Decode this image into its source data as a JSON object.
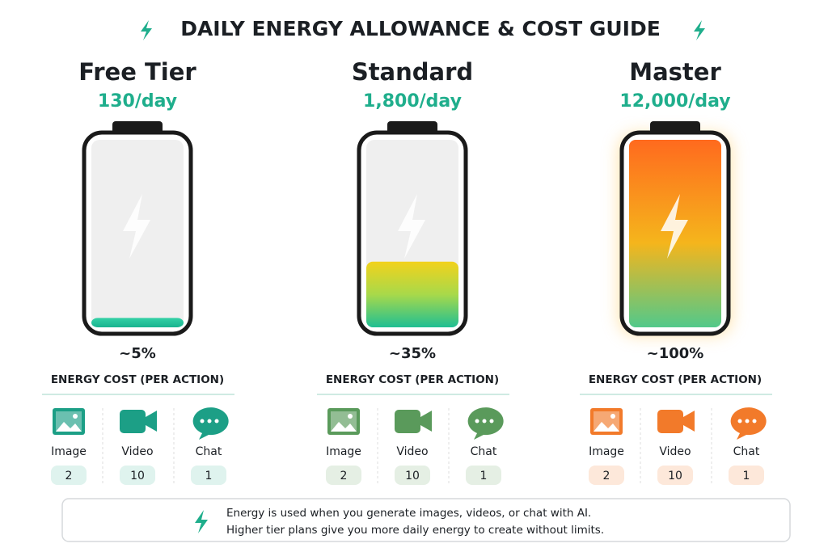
{
  "title": "DAILY ENERGY ALLOWANCE & COST GUIDE",
  "tiers": [
    {
      "name": "Free Tier",
      "allowance": "130/day",
      "fill": {
        "value": 5,
        "label": "~5%"
      },
      "cost_heading": "ENERGY COST (PER ACTION)",
      "costs": [
        {
          "label": "Image",
          "value": 2
        },
        {
          "label": "Video",
          "value": 10
        },
        {
          "label": "Chat",
          "value": 1
        }
      ]
    },
    {
      "name": "Standard",
      "allowance": "1,800/day",
      "fill": {
        "value": 35,
        "label": "~35%"
      },
      "cost_heading": "ENERGY COST (PER ACTION)",
      "costs": [
        {
          "label": "Image",
          "value": 2
        },
        {
          "label": "Video",
          "value": 10
        },
        {
          "label": "Chat",
          "value": 1
        }
      ]
    },
    {
      "name": "Master",
      "allowance": "12,000/day",
      "fill": {
        "value": 100,
        "label": "~100%"
      },
      "cost_heading": "ENERGY COST (PER ACTION)",
      "costs": [
        {
          "label": "Image",
          "value": 2
        },
        {
          "label": "Video",
          "value": 10
        },
        {
          "label": "Chat",
          "value": 1
        }
      ]
    }
  ],
  "footer": {
    "lines": [
      "Energy is used when you generate images, videos, or chat with AI.",
      "Higher tier plans give you more daily energy to create without limits."
    ]
  }
}
